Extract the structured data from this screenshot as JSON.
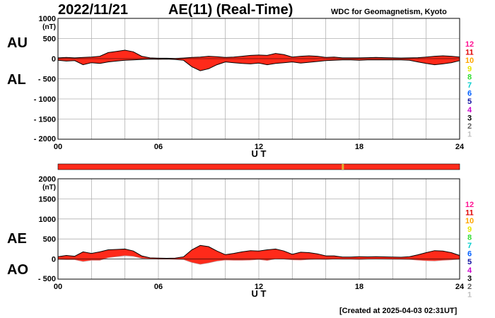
{
  "header": {
    "date": "2022/11/21",
    "title": "AE(11) (Real-Time)",
    "source": "WDC for Geomagnetism, Kyoto"
  },
  "footer": {
    "created": "[Created at 2025-04-03 02:31UT]"
  },
  "colors": {
    "fill": "#ff2a1a",
    "grid": "#b0b0b0",
    "ao_line": "#c08080",
    "status_bar": "#ff2a1a",
    "status_mark": "#e0b030"
  },
  "station_legend": {
    "labels": [
      "12",
      "11",
      "10",
      "9",
      "8",
      "7",
      "6",
      "5",
      "4",
      "3",
      "2",
      "1"
    ],
    "colors": [
      "#ff1493",
      "#e00000",
      "#ffa500",
      "#e6e600",
      "#33dd33",
      "#00cccc",
      "#0060ff",
      "#1010a0",
      "#cc00cc",
      "#000000",
      "#606060",
      "#c0c0c0"
    ]
  },
  "chart_data": [
    {
      "type": "area",
      "panel": "AU/AL",
      "side_labels": {
        "upper": "AU",
        "lower": "AL"
      },
      "xlabel": "U T",
      "x_ticks": [
        "00",
        "06",
        "12",
        "18",
        "24"
      ],
      "xlim": [
        0,
        24
      ],
      "ylim": [
        -2000,
        1000
      ],
      "y_unit": "(nT)",
      "y_ticks": [
        "1000",
        "500",
        "0",
        "- 500",
        "- 1000",
        "- 1500",
        "- 2000"
      ],
      "series": [
        {
          "name": "AU",
          "x": [
            0,
            0.5,
            1,
            1.5,
            2,
            2.5,
            3,
            3.5,
            4,
            4.5,
            5,
            5.5,
            6,
            6.5,
            7,
            7.5,
            8,
            8.5,
            9,
            9.5,
            10,
            10.5,
            11,
            11.5,
            12,
            12.5,
            13,
            13.5,
            14,
            14.5,
            15,
            15.5,
            16,
            16.5,
            17,
            17.5,
            18,
            18.5,
            19,
            19.5,
            20,
            20.5,
            21,
            21.5,
            22,
            22.5,
            23,
            23.5,
            24
          ],
          "values": [
            20,
            30,
            20,
            30,
            40,
            60,
            150,
            180,
            210,
            170,
            60,
            20,
            10,
            10,
            5,
            15,
            30,
            40,
            60,
            50,
            30,
            40,
            60,
            80,
            90,
            80,
            130,
            100,
            40,
            60,
            70,
            60,
            30,
            40,
            20,
            20,
            20,
            25,
            30,
            25,
            20,
            15,
            20,
            25,
            40,
            60,
            70,
            60,
            40
          ]
        },
        {
          "name": "AL",
          "x": [
            0,
            0.5,
            1,
            1.5,
            2,
            2.5,
            3,
            3.5,
            4,
            4.5,
            5,
            5.5,
            6,
            6.5,
            7,
            7.5,
            8,
            8.5,
            9,
            9.5,
            10,
            10.5,
            11,
            11.5,
            12,
            12.5,
            13,
            13.5,
            14,
            14.5,
            15,
            15.5,
            16,
            16.5,
            17,
            17.5,
            18,
            18.5,
            19,
            19.5,
            20,
            20.5,
            21,
            21.5,
            22,
            22.5,
            23,
            23.5,
            24
          ],
          "values": [
            -40,
            -60,
            -50,
            -150,
            -100,
            -120,
            -80,
            -60,
            -40,
            -30,
            -20,
            -10,
            -15,
            -10,
            -20,
            -40,
            -200,
            -300,
            -250,
            -150,
            -80,
            -100,
            -120,
            -130,
            -110,
            -150,
            -120,
            -100,
            -80,
            -110,
            -90,
            -70,
            -50,
            -40,
            -30,
            -30,
            -40,
            -30,
            -30,
            -30,
            -30,
            -30,
            -40,
            -80,
            -120,
            -150,
            -130,
            -100,
            -50
          ]
        }
      ]
    },
    {
      "type": "area",
      "panel": "AE/AO",
      "side_labels": {
        "upper": "AE",
        "lower": "AO"
      },
      "xlabel": "U T",
      "x_ticks": [
        "00",
        "06",
        "12",
        "18",
        "24"
      ],
      "xlim": [
        0,
        24
      ],
      "ylim": [
        -500,
        2000
      ],
      "y_unit": "(nT)",
      "y_ticks": [
        "2000",
        "1500",
        "1000",
        "500",
        "0",
        "- 500"
      ],
      "series": [
        {
          "name": "AE",
          "x": [
            0,
            0.5,
            1,
            1.5,
            2,
            2.5,
            3,
            3.5,
            4,
            4.5,
            5,
            5.5,
            6,
            6.5,
            7,
            7.5,
            8,
            8.5,
            9,
            9.5,
            10,
            10.5,
            11,
            11.5,
            12,
            12.5,
            13,
            13.5,
            14,
            14.5,
            15,
            15.5,
            16,
            16.5,
            17,
            17.5,
            18,
            18.5,
            19,
            19.5,
            20,
            20.5,
            21,
            21.5,
            22,
            22.5,
            23,
            23.5,
            24
          ],
          "values": [
            60,
            90,
            70,
            180,
            140,
            180,
            230,
            240,
            250,
            200,
            80,
            30,
            25,
            20,
            25,
            55,
            230,
            340,
            310,
            200,
            110,
            140,
            180,
            210,
            200,
            230,
            250,
            200,
            120,
            170,
            160,
            130,
            80,
            80,
            50,
            50,
            60,
            55,
            60,
            55,
            50,
            45,
            60,
            105,
            160,
            210,
            200,
            160,
            90
          ]
        },
        {
          "name": "AO",
          "x": [
            0,
            0.5,
            1,
            1.5,
            2,
            2.5,
            3,
            3.5,
            4,
            4.5,
            5,
            5.5,
            6,
            6.5,
            7,
            7.5,
            8,
            8.5,
            9,
            9.5,
            10,
            10.5,
            11,
            11.5,
            12,
            12.5,
            13,
            13.5,
            14,
            14.5,
            15,
            15.5,
            16,
            16.5,
            17,
            17.5,
            18,
            18.5,
            19,
            19.5,
            20,
            20.5,
            21,
            21.5,
            22,
            22.5,
            23,
            23.5,
            24
          ],
          "values": [
            -10,
            -15,
            -15,
            -60,
            -30,
            -30,
            35,
            60,
            85,
            70,
            20,
            5,
            -2,
            0,
            -7,
            -12,
            -85,
            -130,
            -95,
            -50,
            -25,
            -30,
            -30,
            -25,
            -10,
            -35,
            5,
            0,
            -20,
            -25,
            -10,
            -5,
            -10,
            0,
            -5,
            -5,
            -10,
            -2,
            0,
            -2,
            -5,
            -7,
            -10,
            -27,
            -40,
            -45,
            -30,
            -20,
            -5
          ]
        }
      ]
    }
  ]
}
